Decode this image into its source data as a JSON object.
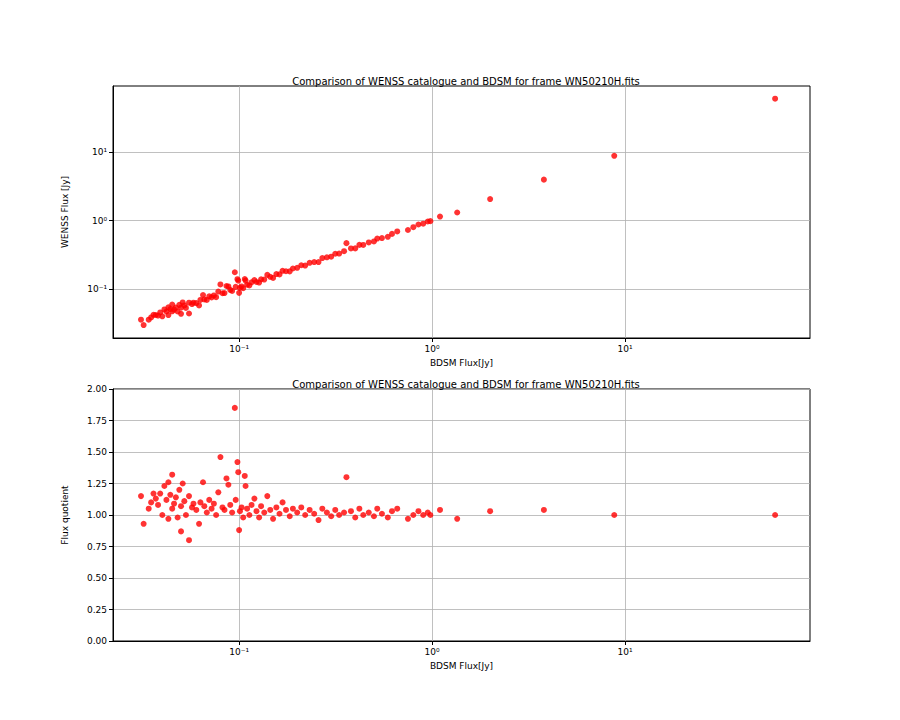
{
  "chart_data": [
    {
      "type": "scatter",
      "title": "Comparison of WENSS catalogue and BDSM for frame WN50210H.fits",
      "xlabel": "BDSM Flux[Jy]",
      "ylabel": "WENSS Flux [Jy]",
      "x": [
        0.031,
        0.032,
        0.034,
        0.035,
        0.036,
        0.037,
        0.038,
        0.039,
        0.04,
        0.041,
        0.042,
        0.043,
        0.043,
        0.044,
        0.045,
        0.045,
        0.046,
        0.047,
        0.048,
        0.049,
        0.05,
        0.05,
        0.051,
        0.052,
        0.053,
        0.055,
        0.055,
        0.057,
        0.058,
        0.06,
        0.062,
        0.063,
        0.065,
        0.066,
        0.068,
        0.07,
        0.072,
        0.074,
        0.076,
        0.078,
        0.08,
        0.082,
        0.084,
        0.086,
        0.088,
        0.09,
        0.092,
        0.095,
        0.096,
        0.098,
        0.099,
        0.1,
        0.101,
        0.103,
        0.105,
        0.107,
        0.108,
        0.11,
        0.113,
        0.116,
        0.12,
        0.123,
        0.127,
        0.13,
        0.135,
        0.14,
        0.145,
        0.15,
        0.156,
        0.162,
        0.168,
        0.175,
        0.183,
        0.19,
        0.2,
        0.21,
        0.22,
        0.232,
        0.245,
        0.258,
        0.27,
        0.285,
        0.3,
        0.315,
        0.33,
        0.35,
        0.36,
        0.38,
        0.4,
        0.42,
        0.44,
        0.47,
        0.5,
        0.52,
        0.55,
        0.59,
        0.62,
        0.66,
        0.75,
        0.8,
        0.85,
        0.9,
        0.95,
        0.98,
        1.1,
        1.35,
        2.0,
        3.8,
        8.8,
        60.0
      ],
      "values": [
        0.0357,
        0.0298,
        0.0357,
        0.0385,
        0.0421,
        0.0418,
        0.041,
        0.0456,
        0.04,
        0.0504,
        0.047,
        0.0417,
        0.0542,
        0.051,
        0.0594,
        0.0473,
        0.0501,
        0.0536,
        0.047,
        0.0588,
        0.0435,
        0.0535,
        0.0638,
        0.0577,
        0.053,
        0.044,
        0.0633,
        0.0604,
        0.0632,
        0.0624,
        0.0577,
        0.0693,
        0.0819,
        0.0706,
        0.0694,
        0.0784,
        0.0756,
        0.0807,
        0.076,
        0.092,
        0.1168,
        0.0869,
        0.0874,
        0.1109,
        0.1091,
        0.0972,
        0.0938,
        0.1758,
        0.1075,
        0.1392,
        0.1327,
        0.088,
        0.104,
        0.1092,
        0.1029,
        0.1402,
        0.1328,
        0.1155,
        0.113,
        0.1253,
        0.1356,
        0.1267,
        0.1245,
        0.1391,
        0.1377,
        0.161,
        0.1508,
        0.1455,
        0.1654,
        0.1636,
        0.1848,
        0.182,
        0.1812,
        0.1995,
        0.204,
        0.2226,
        0.22,
        0.2413,
        0.2475,
        0.2477,
        0.2835,
        0.2907,
        0.297,
        0.3276,
        0.33,
        0.357,
        0.468,
        0.3914,
        0.392,
        0.441,
        0.44,
        0.4794,
        0.495,
        0.546,
        0.5555,
        0.5782,
        0.6386,
        0.693,
        0.7275,
        0.8,
        0.8755,
        0.9,
        0.969,
        0.98,
        1.144,
        1.31,
        2.06,
        3.952,
        8.8,
        60.0
      ],
      "color": "#ff0000",
      "marker": "circle",
      "xlim": [
        0.0222,
        91
      ],
      "ylim": [
        0.0193,
        92
      ],
      "xticks": [
        {
          "value": 0.1,
          "label": "10⁻¹"
        },
        {
          "value": 1,
          "label": "10⁰"
        },
        {
          "value": 10,
          "label": "10¹"
        }
      ],
      "yticks": [
        {
          "value": 0.1,
          "label": "10⁻¹"
        },
        {
          "value": 1,
          "label": "10⁰"
        },
        {
          "value": 10,
          "label": "10¹"
        }
      ],
      "log": true,
      "grid": true
    },
    {
      "type": "scatter",
      "title": "Comparison of WENSS catalogue and BDSM for frame WN50210H.fits",
      "xlabel": "BDSM Flux[Jy]",
      "ylabel": "Flux quotient",
      "x": [
        0.031,
        0.032,
        0.034,
        0.035,
        0.036,
        0.037,
        0.038,
        0.039,
        0.04,
        0.041,
        0.042,
        0.043,
        0.043,
        0.044,
        0.045,
        0.045,
        0.046,
        0.047,
        0.048,
        0.049,
        0.05,
        0.05,
        0.051,
        0.052,
        0.053,
        0.055,
        0.055,
        0.057,
        0.058,
        0.06,
        0.062,
        0.063,
        0.065,
        0.066,
        0.068,
        0.07,
        0.072,
        0.074,
        0.076,
        0.078,
        0.08,
        0.082,
        0.084,
        0.086,
        0.088,
        0.09,
        0.092,
        0.095,
        0.096,
        0.098,
        0.099,
        0.1,
        0.101,
        0.103,
        0.105,
        0.107,
        0.108,
        0.11,
        0.113,
        0.116,
        0.12,
        0.123,
        0.127,
        0.13,
        0.135,
        0.14,
        0.145,
        0.15,
        0.156,
        0.162,
        0.168,
        0.175,
        0.183,
        0.19,
        0.2,
        0.21,
        0.22,
        0.232,
        0.245,
        0.258,
        0.27,
        0.285,
        0.3,
        0.315,
        0.33,
        0.35,
        0.36,
        0.38,
        0.4,
        0.42,
        0.44,
        0.47,
        0.5,
        0.52,
        0.55,
        0.59,
        0.62,
        0.66,
        0.75,
        0.8,
        0.85,
        0.9,
        0.95,
        0.98,
        1.1,
        1.35,
        2.0,
        3.8,
        8.8,
        60.0
      ],
      "values": [
        1.15,
        0.93,
        1.05,
        1.1,
        1.17,
        1.13,
        1.08,
        1.17,
        1.0,
        1.23,
        1.12,
        0.97,
        1.26,
        1.16,
        1.32,
        1.05,
        1.09,
        1.14,
        0.98,
        1.2,
        0.87,
        1.07,
        1.25,
        1.11,
        1.0,
        0.8,
        1.15,
        1.06,
        1.09,
        1.04,
        0.93,
        1.1,
        1.26,
        1.07,
        1.02,
        1.12,
        1.05,
        1.09,
        1.0,
        1.18,
        1.46,
        1.06,
        1.04,
        1.29,
        1.24,
        1.08,
        1.02,
        1.85,
        1.12,
        1.42,
        1.34,
        0.88,
        1.03,
        1.06,
        0.98,
        1.31,
        1.23,
        1.05,
        1.0,
        1.08,
        1.13,
        1.03,
        0.98,
        1.07,
        1.02,
        1.15,
        1.04,
        0.97,
        1.06,
        1.01,
        1.1,
        1.04,
        0.99,
        1.05,
        1.02,
        1.06,
        1.0,
        1.04,
        1.01,
        0.96,
        1.05,
        1.02,
        0.99,
        1.04,
        1.0,
        1.02,
        1.3,
        1.03,
        0.98,
        1.05,
        1.0,
        1.02,
        0.99,
        1.05,
        1.01,
        0.98,
        1.03,
        1.05,
        0.97,
        1.0,
        1.03,
        1.0,
        1.02,
        1.0,
        1.04,
        0.97,
        1.03,
        1.04,
        1.0,
        1.0
      ],
      "color": "#ff0000",
      "marker": "circle",
      "xlim": [
        0.0222,
        91
      ],
      "ylim": [
        0,
        2
      ],
      "xticks": [
        {
          "value": 0.1,
          "label": "10⁻¹"
        },
        {
          "value": 1,
          "label": "10⁰"
        },
        {
          "value": 10,
          "label": "10¹"
        }
      ],
      "yticks": [
        {
          "value": 0,
          "label": "0.00"
        },
        0.25,
        {
          "value": 0.5,
          "label": "0.50"
        },
        0.75,
        {
          "value": 1,
          "label": "1.00"
        },
        1.25,
        {
          "value": 1.5,
          "label": "1.50"
        },
        1.75,
        {
          "value": 2,
          "label": "2.00"
        }
      ],
      "log": "x",
      "grid": true
    }
  ]
}
